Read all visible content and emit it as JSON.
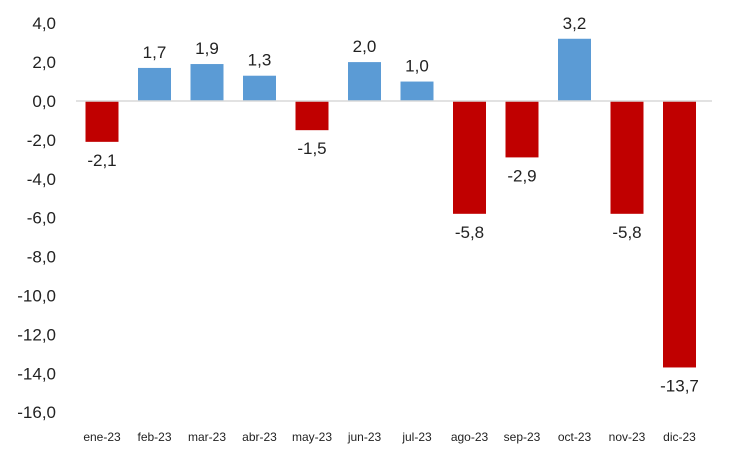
{
  "chart_data": {
    "type": "bar",
    "title": "",
    "xlabel": "",
    "ylabel": "",
    "categories": [
      "ene-23",
      "feb-23",
      "mar-23",
      "abr-23",
      "may-23",
      "jun-23",
      "jul-23",
      "ago-23",
      "sep-23",
      "oct-23",
      "nov-23",
      "dic-23"
    ],
    "values": [
      -2.1,
      1.7,
      1.9,
      1.3,
      -1.5,
      2.0,
      1.0,
      -5.8,
      -2.9,
      3.2,
      -5.8,
      -13.7
    ],
    "data_labels": [
      "-2,1",
      "1,7",
      "1,9",
      "1,3",
      "-1,5",
      "2,0",
      "1,0",
      "-5,8",
      "-2,9",
      "3,2",
      "-5,8",
      "-13,7"
    ],
    "ylim": [
      -16,
      4
    ],
    "yticks": [
      4,
      2,
      0,
      -2,
      -4,
      -6,
      -8,
      -10,
      -12,
      -14,
      -16
    ],
    "ytick_labels": [
      "4,0",
      "2,0",
      "0,0",
      "-2,0",
      "-4,0",
      "-6,0",
      "-8,0",
      "-10,0",
      "-12,0",
      "-14,0",
      "-16,0"
    ],
    "grid": false,
    "legend": "none",
    "colors": {
      "positive": "#5B9BD5",
      "negative": "#C00000",
      "axis": "#D9D9D9"
    }
  }
}
